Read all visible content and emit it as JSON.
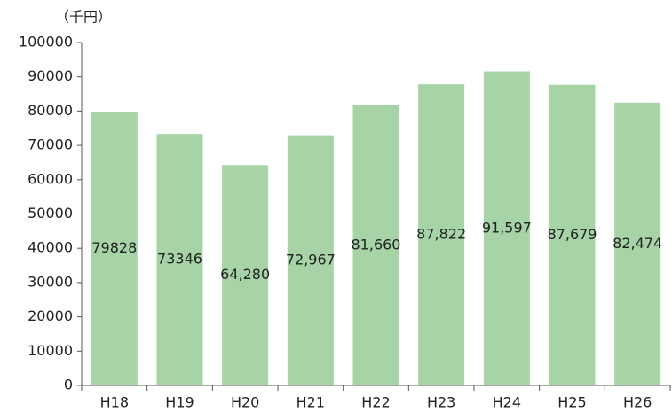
{
  "chart_data": {
    "type": "bar",
    "y_axis_label": "（千円）",
    "categories": [
      "H18",
      "H19",
      "H20",
      "H21",
      "H22",
      "H23",
      "H24",
      "H25",
      "H26"
    ],
    "values": [
      79828,
      73346,
      64280,
      72967,
      81660,
      87822,
      91597,
      87679,
      82474
    ],
    "value_labels": [
      "79828",
      "73346",
      "64,280",
      "72,967",
      "81,660",
      "87,822",
      "91,597",
      "87,679",
      "82,474"
    ],
    "color": "#a6d4a6",
    "ylim": [
      0,
      100000
    ],
    "yticks": [
      0,
      10000,
      20000,
      30000,
      40000,
      50000,
      60000,
      70000,
      80000,
      90000,
      100000
    ],
    "grid": false
  }
}
